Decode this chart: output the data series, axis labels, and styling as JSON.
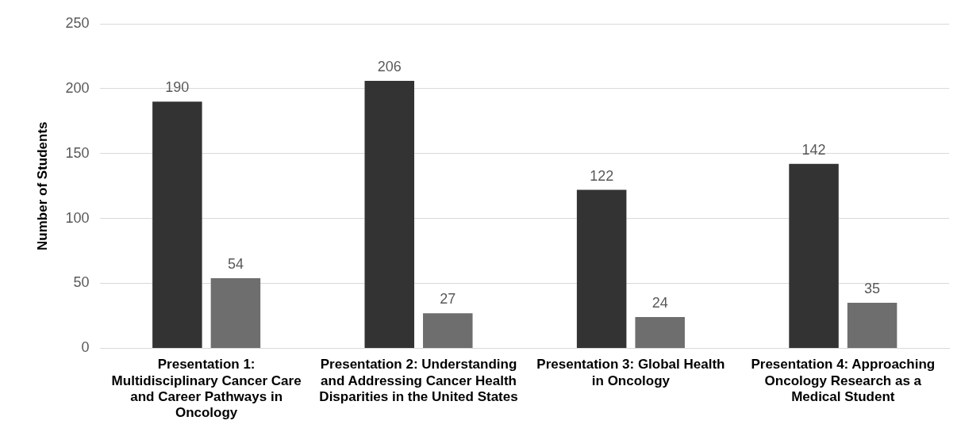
{
  "chart_data": {
    "type": "bar",
    "ylabel": "Number of Students",
    "categories": [
      "Presentation 1: Multidisciplinary Cancer Care and Career Pathways in Oncology",
      "Presentation 2: Understanding and Addressing Cancer Health Disparities in the United States",
      "Presentation 3: Global Health in Oncology",
      "Presentation 4: Approaching Oncology Research as a Medical Student"
    ],
    "series": [
      {
        "color": "#333333",
        "values": [
          190,
          206,
          122,
          142
        ]
      },
      {
        "color": "#6e6e6e",
        "values": [
          54,
          27,
          24,
          35
        ]
      }
    ],
    "ylim": [
      0,
      250
    ],
    "yticks": [
      0,
      50,
      100,
      150,
      200,
      250
    ],
    "grid": "y",
    "data_labels": true,
    "legend": false
  }
}
